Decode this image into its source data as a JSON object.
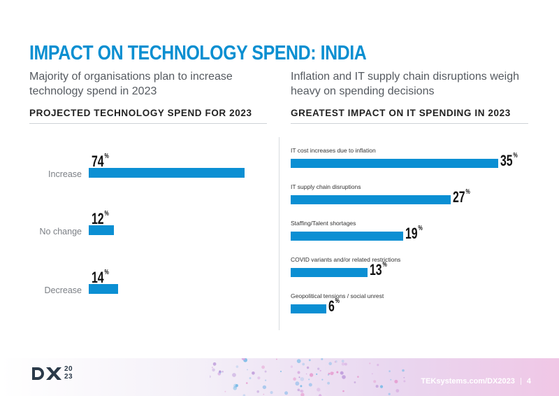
{
  "page": {
    "title": "IMPACT ON TECHNOLOGY SPEND: INDIA",
    "left_subtitle": "Majority of organisations plan to increase technology spend in 2023",
    "right_subtitle": "Inflation and IT supply chain disruptions weigh heavy on spending decisions"
  },
  "footer": {
    "logo_text": "DX",
    "logo_year_top": "20",
    "logo_year_bottom": "23",
    "link": "TEKsystems.com/DX2023",
    "page_number": "4"
  },
  "colors": {
    "accent": "#0a8fd1",
    "bar": "#0b8fd3"
  },
  "chart_data": [
    {
      "type": "bar",
      "orientation": "horizontal",
      "title": "PROJECTED TECHNOLOGY SPEND FOR 2023",
      "categories": [
        "Increase",
        "No change",
        "Decrease"
      ],
      "values": [
        74,
        12,
        14
      ],
      "unit": "%",
      "xlim": [
        0,
        100
      ]
    },
    {
      "type": "bar",
      "orientation": "horizontal",
      "title": "GREATEST IMPACT ON IT SPENDING IN 2023",
      "categories": [
        "IT cost increases due to inflation",
        "IT supply chain disruptions",
        "Staffing/Talent shortages",
        "COVID variants and/or related restrictions",
        "Geopolitical tensions / social unrest"
      ],
      "values": [
        35,
        27,
        19,
        13,
        6
      ],
      "unit": "%",
      "xlim": [
        0,
        40
      ]
    }
  ]
}
